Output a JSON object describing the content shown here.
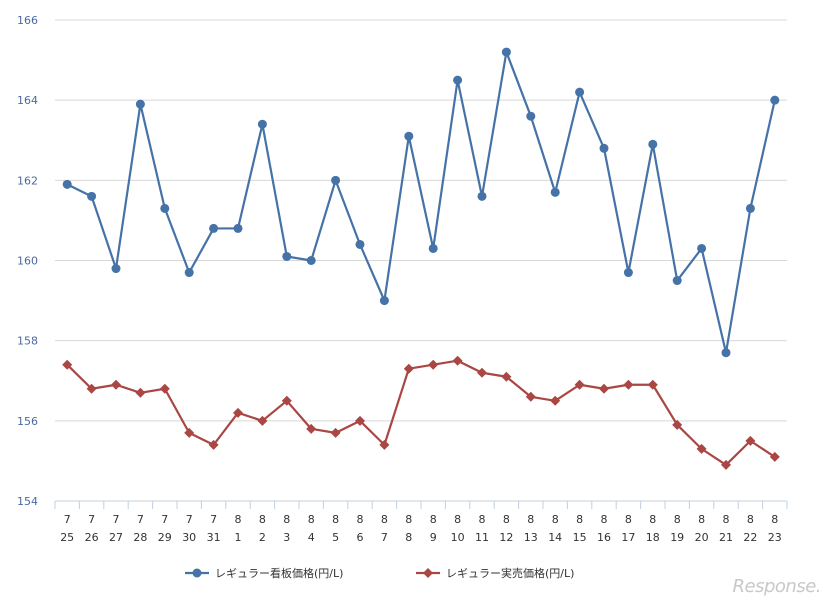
{
  "chart_data": {
    "type": "line",
    "categories": [
      [
        "7",
        "25"
      ],
      [
        "7",
        "26"
      ],
      [
        "7",
        "27"
      ],
      [
        "7",
        "28"
      ],
      [
        "7",
        "29"
      ],
      [
        "7",
        "30"
      ],
      [
        "7",
        "31"
      ],
      [
        "8",
        "1"
      ],
      [
        "8",
        "2"
      ],
      [
        "8",
        "3"
      ],
      [
        "8",
        "4"
      ],
      [
        "8",
        "5"
      ],
      [
        "8",
        "6"
      ],
      [
        "8",
        "7"
      ],
      [
        "8",
        "8"
      ],
      [
        "8",
        "9"
      ],
      [
        "8",
        "10"
      ],
      [
        "8",
        "11"
      ],
      [
        "8",
        "12"
      ],
      [
        "8",
        "13"
      ],
      [
        "8",
        "14"
      ],
      [
        "8",
        "15"
      ],
      [
        "8",
        "16"
      ],
      [
        "8",
        "17"
      ],
      [
        "8",
        "18"
      ],
      [
        "8",
        "19"
      ],
      [
        "8",
        "20"
      ],
      [
        "8",
        "21"
      ],
      [
        "8",
        "22"
      ],
      [
        "8",
        "23"
      ]
    ],
    "series": [
      {
        "name": "レギュラー看板価格(円/L)",
        "color": "#4572a7",
        "marker": "circle",
        "values": [
          161.9,
          161.6,
          159.8,
          163.9,
          161.3,
          159.7,
          160.8,
          160.8,
          163.4,
          160.1,
          160.0,
          162.0,
          160.4,
          159.0,
          163.1,
          160.3,
          164.5,
          161.6,
          165.2,
          163.6,
          161.7,
          164.2,
          162.8,
          159.7,
          162.9,
          159.5,
          160.3,
          157.7,
          161.3,
          164.0
        ]
      },
      {
        "name": "レギュラー実売価格(円/L)",
        "color": "#aa4643",
        "marker": "diamond",
        "values": [
          157.4,
          156.8,
          156.9,
          156.7,
          156.8,
          155.7,
          155.4,
          156.2,
          156.0,
          156.5,
          155.8,
          155.7,
          156.0,
          155.4,
          157.3,
          157.4,
          157.5,
          157.2,
          157.1,
          156.6,
          156.5,
          156.9,
          156.8,
          156.9,
          156.9,
          155.9,
          155.3,
          154.9,
          155.5,
          155.1
        ]
      }
    ],
    "ylim": [
      154,
      166
    ],
    "yticks": [
      154,
      156,
      158,
      160,
      162,
      164,
      166
    ],
    "grid": true,
    "legend_position": "bottom"
  },
  "watermark": "Response."
}
